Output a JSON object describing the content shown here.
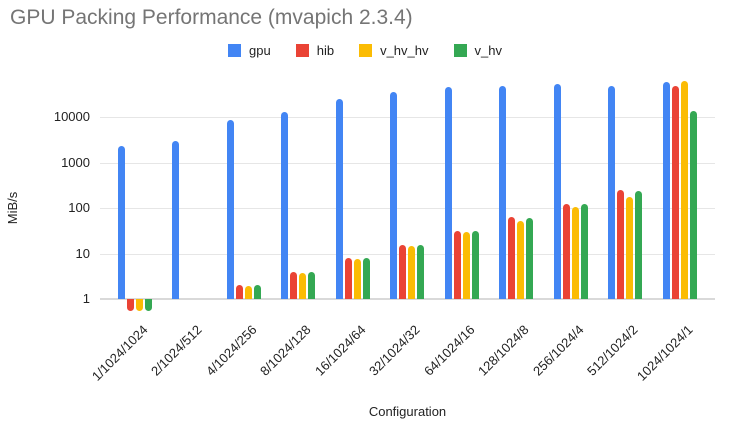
{
  "title": "GPU Packing Performance (mvapich 2.3.4)",
  "chart_data": {
    "type": "bar",
    "title": "GPU Packing Performance (mvapich 2.3.4)",
    "xlabel": "Configuration",
    "ylabel": "MiB/s",
    "y_scale": "log",
    "y_ticks": [
      "1",
      "10",
      "100",
      "1000",
      "10000"
    ],
    "y_tick_values": [
      1,
      10,
      100,
      1000,
      10000
    ],
    "ylim": [
      0.45,
      70000
    ],
    "grid": true,
    "legend_position": "top-center",
    "baseline_value": 1,
    "categories": [
      "1/1024/1024",
      "2/1024/512",
      "4/1024/256",
      "8/1024/128",
      "16/1024/64",
      "32/1024/32",
      "64/1024/16",
      "128/1024/8",
      "256/1024/4",
      "512/1024/2",
      "1024/1024/1"
    ],
    "series": [
      {
        "name": "gpu",
        "color": "#4285F4",
        "values": [
          2300,
          2900,
          8400,
          13000,
          25000,
          36000,
          45000,
          48000,
          53000,
          48000,
          58000
        ]
      },
      {
        "name": "hib",
        "color": "#EA4335",
        "values": [
          0.55,
          null,
          2.0,
          3.9,
          7.8,
          15,
          31,
          62,
          125,
          250,
          47000
        ]
      },
      {
        "name": "v_hv_hv",
        "color": "#FBBC04",
        "values": [
          0.55,
          null,
          1.9,
          3.7,
          7.5,
          14.5,
          29,
          52,
          105,
          175,
          62000
        ]
      },
      {
        "name": "v_hv",
        "color": "#34A853",
        "values": [
          0.55,
          null,
          2.0,
          3.9,
          7.8,
          15,
          31,
          61,
          123,
          235,
          13500
        ]
      }
    ]
  }
}
